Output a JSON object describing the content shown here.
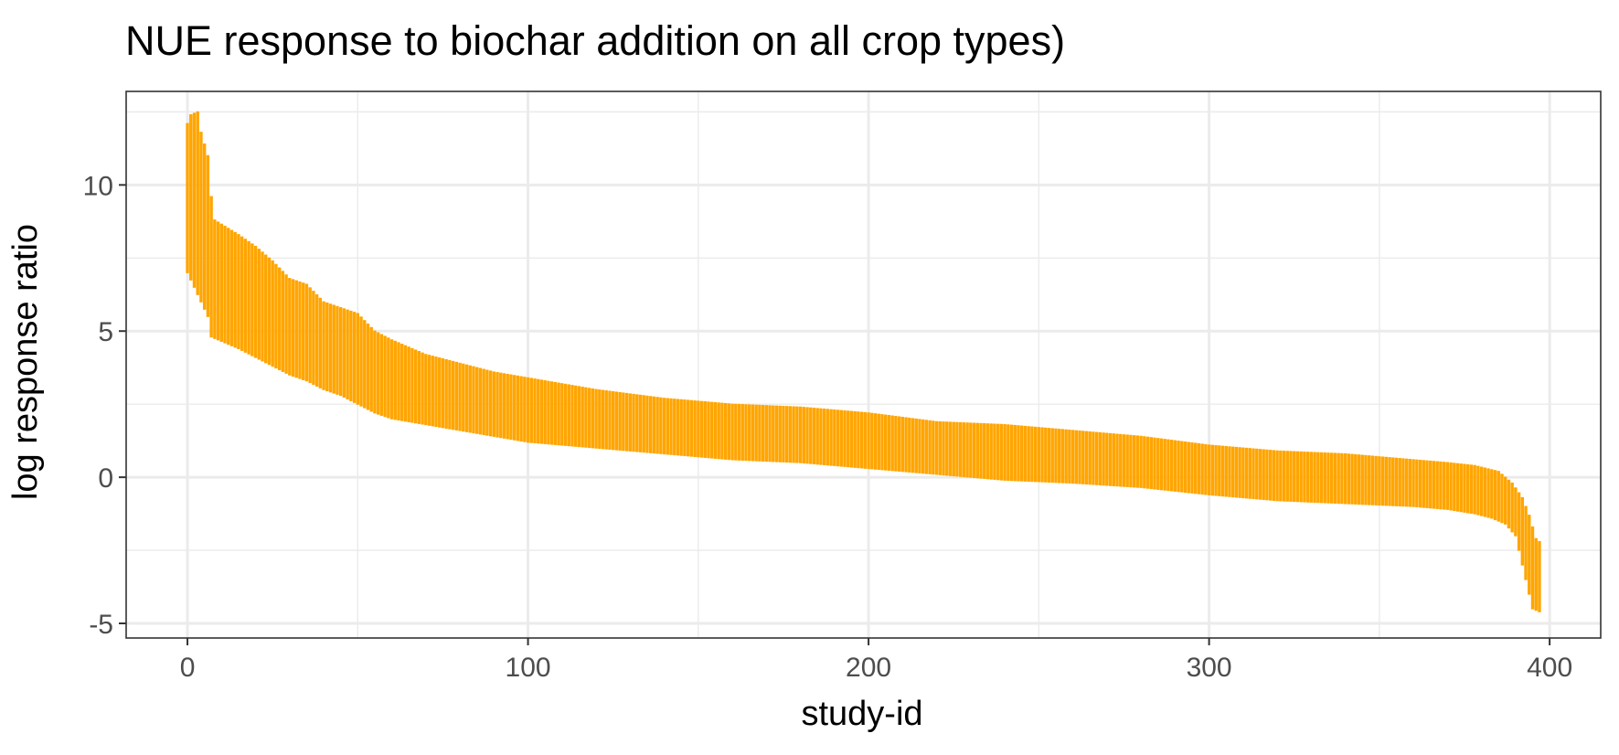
{
  "chart_data": {
    "type": "errorbar",
    "title": "NUE response to biochar addition on all crop types)",
    "xlabel": "study-id",
    "ylabel": "log response ratio",
    "xlim": [
      -18,
      415
    ],
    "ylim": [
      -5.5,
      13.2
    ],
    "x_ticks": [
      0,
      100,
      200,
      300,
      400
    ],
    "y_ticks": [
      -5,
      0,
      5,
      10
    ],
    "x_minor": [
      50,
      150,
      250,
      350
    ],
    "y_minor": [
      -2.5,
      2.5,
      7.5,
      12.5
    ],
    "grid": true,
    "legend": "none",
    "n_points": 398,
    "color": "#FFA500",
    "upper_profile": [
      {
        "x": 0,
        "y": 12.1
      },
      {
        "x": 1,
        "y": 12.4
      },
      {
        "x": 3,
        "y": 12.5
      },
      {
        "x": 4,
        "y": 11.8
      },
      {
        "x": 6,
        "y": 11.0
      },
      {
        "x": 7,
        "y": 9.6
      },
      {
        "x": 8,
        "y": 8.8
      },
      {
        "x": 15,
        "y": 8.3
      },
      {
        "x": 20,
        "y": 7.9
      },
      {
        "x": 25,
        "y": 7.4
      },
      {
        "x": 30,
        "y": 6.8
      },
      {
        "x": 35,
        "y": 6.6
      },
      {
        "x": 40,
        "y": 6.0
      },
      {
        "x": 50,
        "y": 5.6
      },
      {
        "x": 55,
        "y": 5.0
      },
      {
        "x": 60,
        "y": 4.7
      },
      {
        "x": 70,
        "y": 4.2
      },
      {
        "x": 80,
        "y": 3.9
      },
      {
        "x": 90,
        "y": 3.6
      },
      {
        "x": 100,
        "y": 3.4
      },
      {
        "x": 120,
        "y": 3.0
      },
      {
        "x": 140,
        "y": 2.7
      },
      {
        "x": 160,
        "y": 2.5
      },
      {
        "x": 180,
        "y": 2.4
      },
      {
        "x": 200,
        "y": 2.2
      },
      {
        "x": 220,
        "y": 1.9
      },
      {
        "x": 240,
        "y": 1.8
      },
      {
        "x": 260,
        "y": 1.6
      },
      {
        "x": 280,
        "y": 1.4
      },
      {
        "x": 300,
        "y": 1.1
      },
      {
        "x": 320,
        "y": 0.9
      },
      {
        "x": 340,
        "y": 0.8
      },
      {
        "x": 360,
        "y": 0.6
      },
      {
        "x": 370,
        "y": 0.5
      },
      {
        "x": 378,
        "y": 0.4
      },
      {
        "x": 385,
        "y": 0.2
      },
      {
        "x": 389,
        "y": -0.2
      },
      {
        "x": 392,
        "y": -0.7
      },
      {
        "x": 394,
        "y": -1.3
      },
      {
        "x": 396,
        "y": -2.1
      },
      {
        "x": 397,
        "y": -2.2
      }
    ],
    "lower_profile": [
      {
        "x": 0,
        "y": 7.0
      },
      {
        "x": 2,
        "y": 6.5
      },
      {
        "x": 4,
        "y": 6.0
      },
      {
        "x": 6,
        "y": 5.5
      },
      {
        "x": 7,
        "y": 4.8
      },
      {
        "x": 15,
        "y": 4.4
      },
      {
        "x": 20,
        "y": 4.1
      },
      {
        "x": 30,
        "y": 3.5
      },
      {
        "x": 35,
        "y": 3.3
      },
      {
        "x": 40,
        "y": 3.0
      },
      {
        "x": 45,
        "y": 2.8
      },
      {
        "x": 50,
        "y": 2.5
      },
      {
        "x": 55,
        "y": 2.2
      },
      {
        "x": 60,
        "y": 2.0
      },
      {
        "x": 70,
        "y": 1.8
      },
      {
        "x": 80,
        "y": 1.6
      },
      {
        "x": 90,
        "y": 1.4
      },
      {
        "x": 100,
        "y": 1.2
      },
      {
        "x": 120,
        "y": 1.0
      },
      {
        "x": 140,
        "y": 0.8
      },
      {
        "x": 160,
        "y": 0.6
      },
      {
        "x": 180,
        "y": 0.5
      },
      {
        "x": 200,
        "y": 0.3
      },
      {
        "x": 220,
        "y": 0.1
      },
      {
        "x": 240,
        "y": -0.1
      },
      {
        "x": 260,
        "y": -0.2
      },
      {
        "x": 280,
        "y": -0.35
      },
      {
        "x": 300,
        "y": -0.6
      },
      {
        "x": 320,
        "y": -0.8
      },
      {
        "x": 340,
        "y": -0.9
      },
      {
        "x": 360,
        "y": -1.0
      },
      {
        "x": 370,
        "y": -1.1
      },
      {
        "x": 378,
        "y": -1.25
      },
      {
        "x": 383,
        "y": -1.4
      },
      {
        "x": 387,
        "y": -1.6
      },
      {
        "x": 390,
        "y": -2.0
      },
      {
        "x": 392,
        "y": -3.0
      },
      {
        "x": 394,
        "y": -4.0
      },
      {
        "x": 395,
        "y": -4.5
      },
      {
        "x": 397,
        "y": -4.6
      }
    ]
  }
}
